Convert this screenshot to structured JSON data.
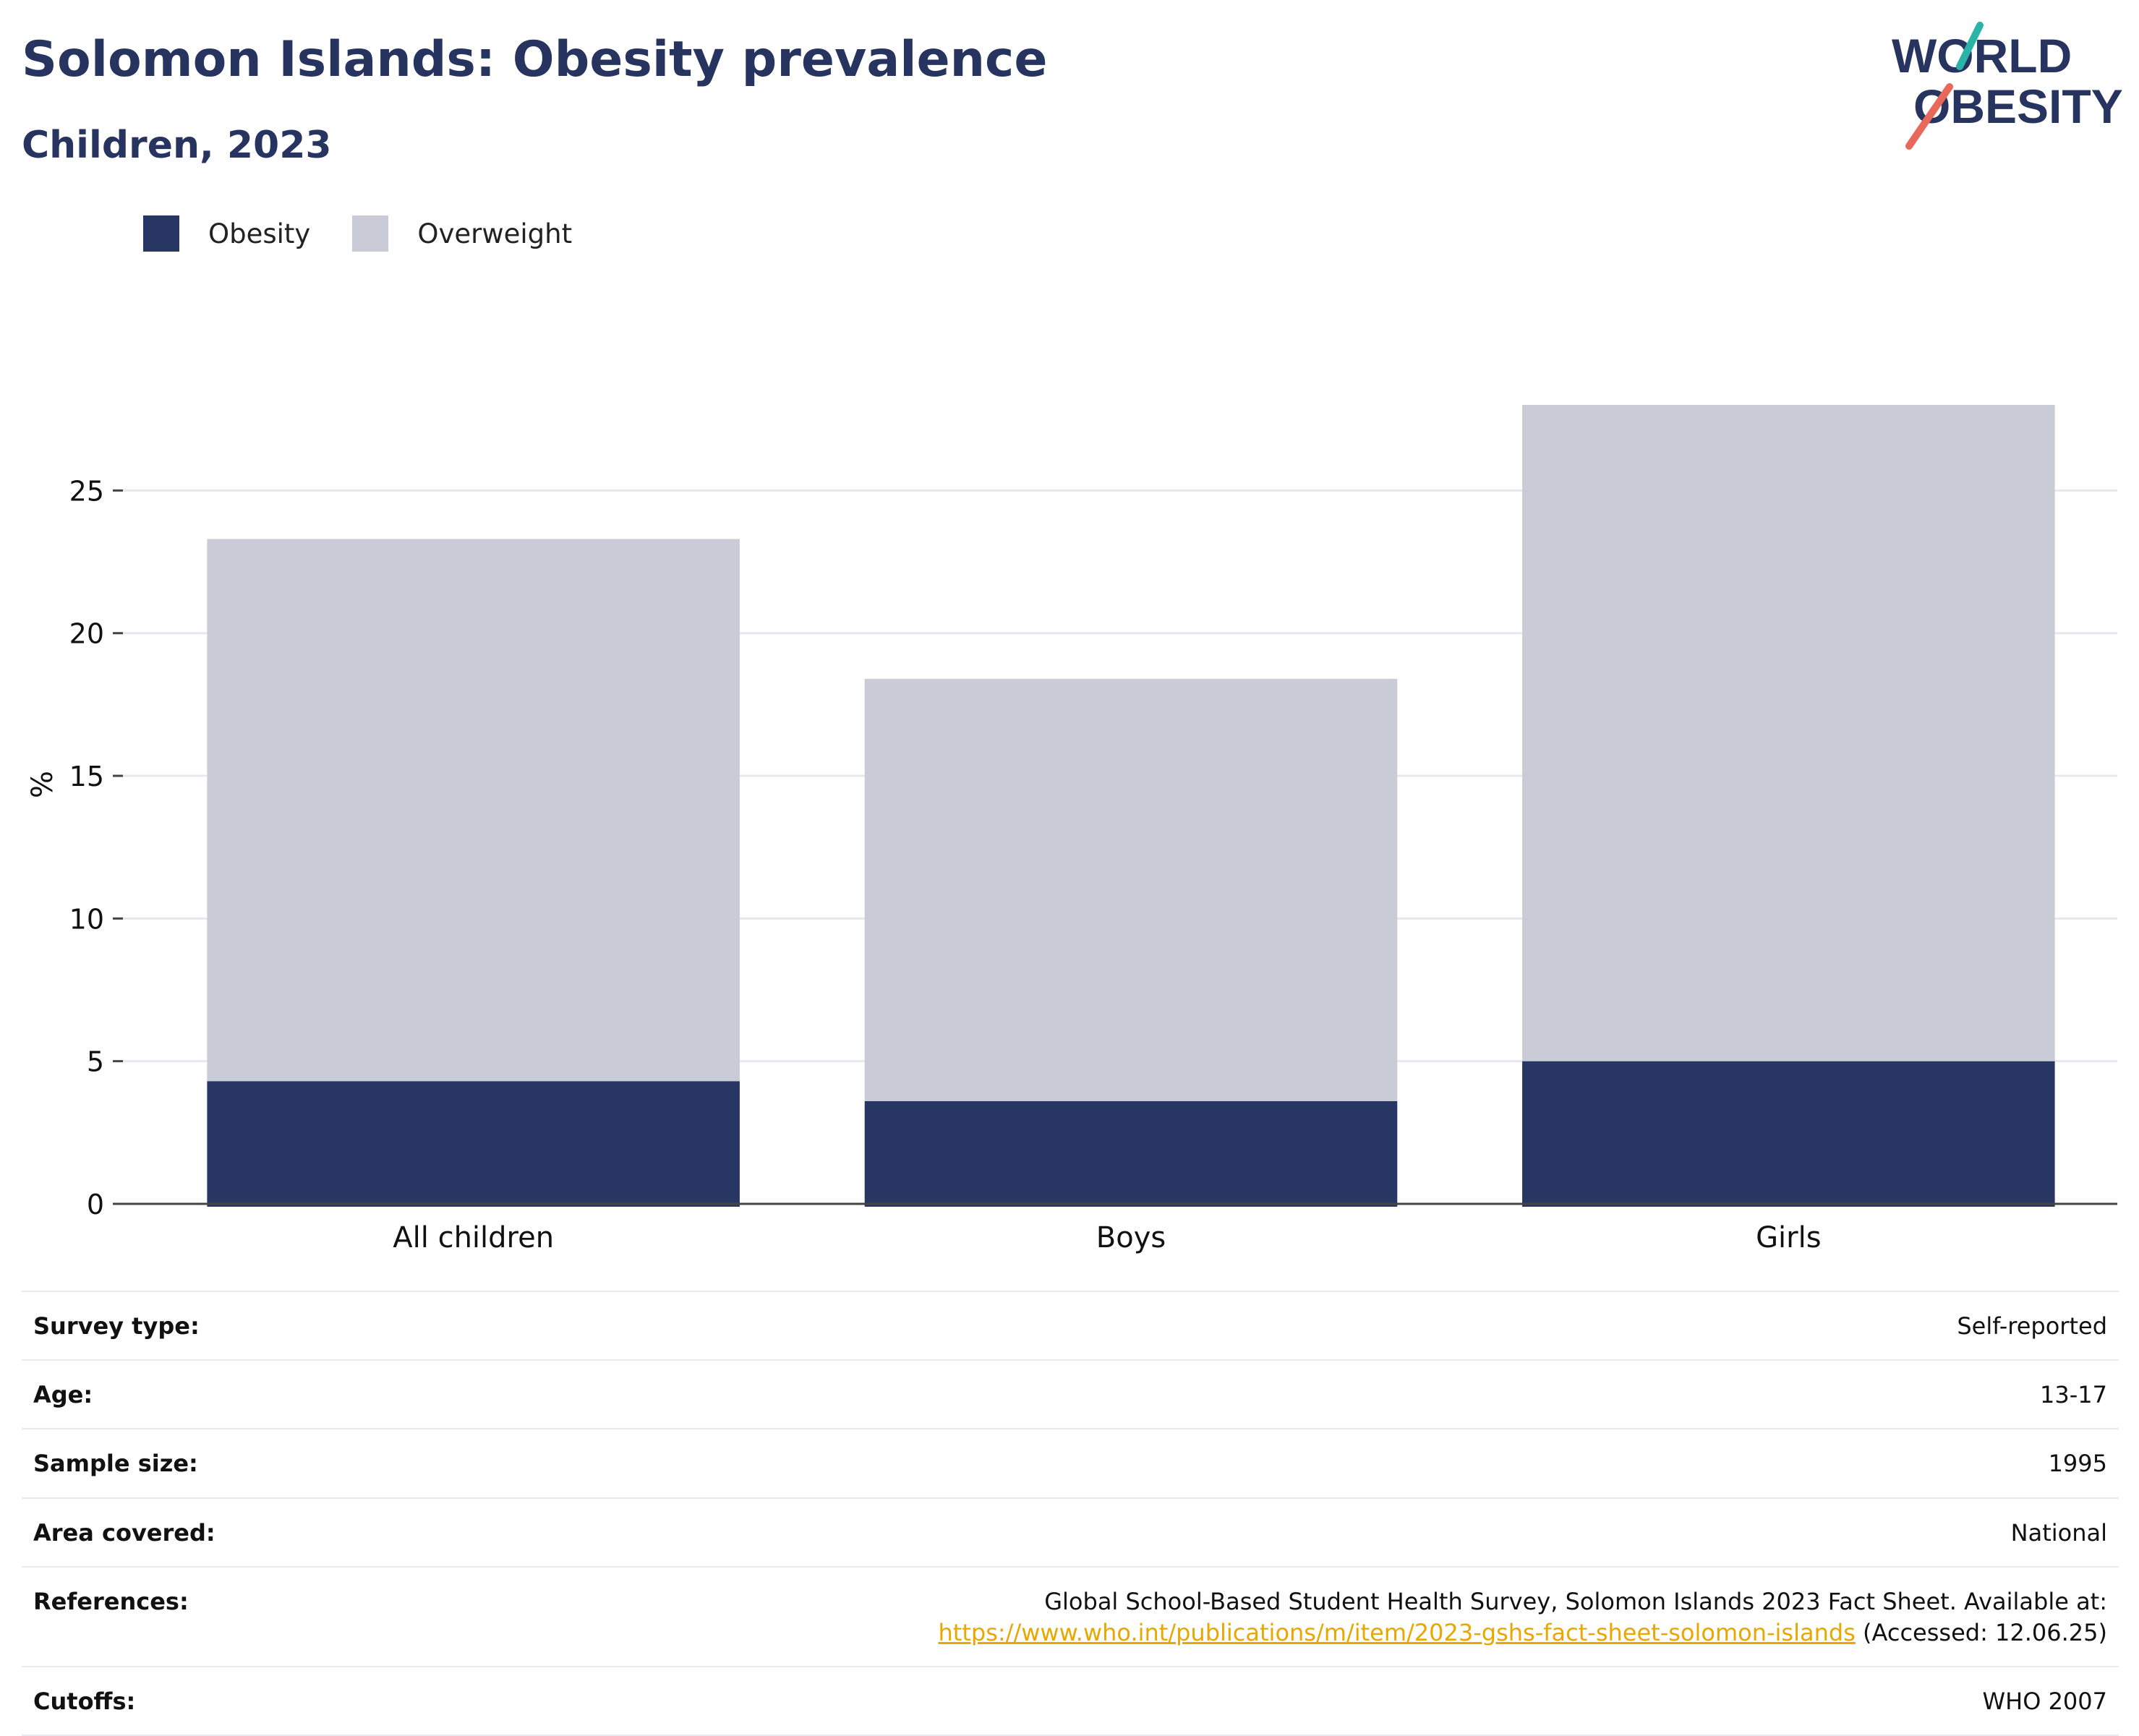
{
  "header": {
    "title": "Solomon Islands: Obesity prevalence",
    "subtitle": "Children, 2023"
  },
  "logo": {
    "line1": "WORLD",
    "line2": "OBESITY"
  },
  "legend": [
    {
      "label": "Obesity",
      "color": "#283664"
    },
    {
      "label": "Overweight",
      "color": "#c9cbd6"
    }
  ],
  "chart_data": {
    "type": "bar",
    "stacked": true,
    "categories": [
      "All children",
      "Boys",
      "Girls"
    ],
    "series": [
      {
        "name": "Obesity",
        "color": "#283664",
        "values": [
          4.3,
          3.6,
          5.0
        ]
      },
      {
        "name": "Overweight",
        "color": "#c9cbd6",
        "values": [
          19.0,
          14.8,
          23.0
        ]
      }
    ],
    "ylabel": "%",
    "ylim": [
      0,
      28
    ],
    "yticks": [
      0,
      5,
      10,
      15,
      20,
      25
    ],
    "grid": true,
    "legend_position": "top-left"
  },
  "info": {
    "survey_type": {
      "label": "Survey type:",
      "value": "Self-reported"
    },
    "age": {
      "label": "Age:",
      "value": "13-17"
    },
    "sample_size": {
      "label": "Sample size:",
      "value": "1995"
    },
    "area_covered": {
      "label": "Area covered:",
      "value": "National"
    },
    "references": {
      "label": "References:",
      "text": "Global School-Based Student Health Survey, Solomon Islands 2023 Fact Sheet. Available at:",
      "link": "https://www.who.int/publications/m/item/2023-gshs-fact-sheet-solomon-islands",
      "accessed": "(Accessed: 12.06.25)"
    },
    "cutoffs": {
      "label": "Cutoffs:",
      "value": "WHO 2007"
    }
  }
}
